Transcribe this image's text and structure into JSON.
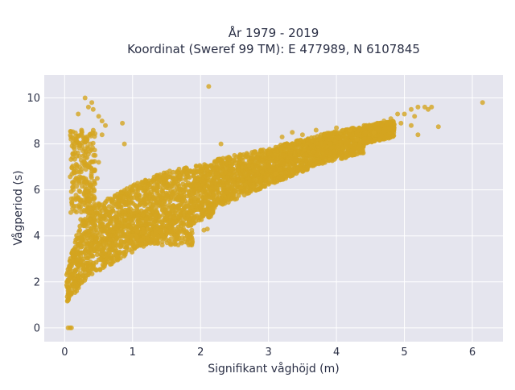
{
  "chart_data": {
    "type": "scatter",
    "title_lines": [
      "År 1979 - 2019",
      "Koordinat (Sweref 99 TM): E 477989, N 6107845"
    ],
    "xlabel": "Signifikant våghöjd (m)",
    "ylabel": "Vågperiod (s)",
    "xlim": [
      -0.3,
      6.45
    ],
    "ylim": [
      -0.6,
      11
    ],
    "x_ticks": [
      0,
      1,
      2,
      3,
      4,
      5,
      6
    ],
    "y_ticks": [
      0,
      2,
      4,
      6,
      8,
      10
    ],
    "grid": true,
    "legend": "none",
    "marker_color": "#d4a520",
    "plot_background": "#e5e5ee",
    "grid_color": "#ffffff",
    "density_bands": [
      {
        "x_from": 0.03,
        "x_to": 0.35,
        "y_low_from": 1.1,
        "y_low_to": 2.2,
        "y_high_from": 2.4,
        "y_high_to": 6.0
      },
      {
        "x_from": 0.35,
        "x_to": 1.0,
        "y_low_from": 2.2,
        "y_low_to": 3.3,
        "y_high_from": 5.2,
        "y_high_to": 6.2
      },
      {
        "x_from": 1.0,
        "x_to": 1.5,
        "y_low_from": 3.3,
        "y_low_to": 4.0,
        "y_high_from": 6.2,
        "y_high_to": 6.8
      },
      {
        "x_from": 1.5,
        "x_to": 2.2,
        "y_low_from": 4.0,
        "y_low_to": 4.9,
        "y_high_from": 6.8,
        "y_high_to": 7.2
      },
      {
        "x_from": 2.2,
        "x_to": 3.0,
        "y_low_from": 5.2,
        "y_low_to": 6.2,
        "y_high_from": 7.3,
        "y_high_to": 7.8
      },
      {
        "x_from": 3.0,
        "x_to": 3.6,
        "y_low_from": 6.2,
        "y_low_to": 6.9,
        "y_high_from": 7.8,
        "y_high_to": 8.3
      },
      {
        "x_from": 3.6,
        "x_to": 4.4,
        "y_low_from": 7.0,
        "y_low_to": 7.6,
        "y_high_from": 8.3,
        "y_high_to": 8.8
      },
      {
        "x_from": 4.4,
        "x_to": 4.85,
        "y_low_from": 8.0,
        "y_low_to": 8.3,
        "y_high_from": 8.8,
        "y_high_to": 9.0
      }
    ],
    "spike_band": {
      "x_from": 0.08,
      "x_to": 0.45,
      "y_from": 5.0,
      "y_to": 8.6
    },
    "low_tail_band": {
      "x_from": 0.9,
      "x_to": 1.9,
      "y_from": 3.6,
      "y_to": 4.3
    },
    "points": [
      {
        "x": 0.05,
        "y": 0.0
      },
      {
        "x": 0.08,
        "y": 0.0
      },
      {
        "x": 0.1,
        "y": 0.0
      },
      {
        "x": 0.3,
        "y": 10.0
      },
      {
        "x": 0.4,
        "y": 9.8
      },
      {
        "x": 0.42,
        "y": 9.5
      },
      {
        "x": 0.35,
        "y": 9.6
      },
      {
        "x": 0.5,
        "y": 9.2
      },
      {
        "x": 0.55,
        "y": 9.0
      },
      {
        "x": 0.6,
        "y": 8.8
      },
      {
        "x": 0.85,
        "y": 8.9
      },
      {
        "x": 0.88,
        "y": 8.0
      },
      {
        "x": 0.55,
        "y": 8.4
      },
      {
        "x": 0.2,
        "y": 9.3
      },
      {
        "x": 0.25,
        "y": 8.6
      },
      {
        "x": 0.45,
        "y": 7.5
      },
      {
        "x": 0.5,
        "y": 7.2
      },
      {
        "x": 0.48,
        "y": 6.5
      },
      {
        "x": 1.05,
        "y": 5.8
      },
      {
        "x": 1.1,
        "y": 6.1
      },
      {
        "x": 2.12,
        "y": 10.5
      },
      {
        "x": 1.7,
        "y": 6.6
      },
      {
        "x": 2.0,
        "y": 7.0
      },
      {
        "x": 2.1,
        "y": 4.3
      },
      {
        "x": 2.05,
        "y": 4.25
      },
      {
        "x": 2.5,
        "y": 7.5
      },
      {
        "x": 2.8,
        "y": 7.6
      },
      {
        "x": 2.1,
        "y": 6.9
      },
      {
        "x": 2.3,
        "y": 8.0
      },
      {
        "x": 3.2,
        "y": 8.3
      },
      {
        "x": 3.35,
        "y": 8.5
      },
      {
        "x": 3.5,
        "y": 8.4
      },
      {
        "x": 3.7,
        "y": 8.6
      },
      {
        "x": 4.0,
        "y": 8.7
      },
      {
        "x": 4.2,
        "y": 8.6
      },
      {
        "x": 4.3,
        "y": 8.2
      },
      {
        "x": 4.6,
        "y": 8.9
      },
      {
        "x": 4.8,
        "y": 9.1
      },
      {
        "x": 4.9,
        "y": 9.3
      },
      {
        "x": 4.95,
        "y": 8.9
      },
      {
        "x": 5.0,
        "y": 9.3
      },
      {
        "x": 5.1,
        "y": 9.5
      },
      {
        "x": 5.2,
        "y": 9.6
      },
      {
        "x": 5.3,
        "y": 9.6
      },
      {
        "x": 5.35,
        "y": 9.5
      },
      {
        "x": 5.4,
        "y": 9.6
      },
      {
        "x": 5.1,
        "y": 8.8
      },
      {
        "x": 5.15,
        "y": 9.2
      },
      {
        "x": 5.2,
        "y": 8.4
      },
      {
        "x": 5.5,
        "y": 8.75
      },
      {
        "x": 6.15,
        "y": 9.8
      },
      {
        "x": 4.7,
        "y": 9.0
      },
      {
        "x": 4.55,
        "y": 8.5
      },
      {
        "x": 3.9,
        "y": 7.3
      },
      {
        "x": 3.1,
        "y": 6.7
      },
      {
        "x": 2.6,
        "y": 6.1
      }
    ]
  }
}
